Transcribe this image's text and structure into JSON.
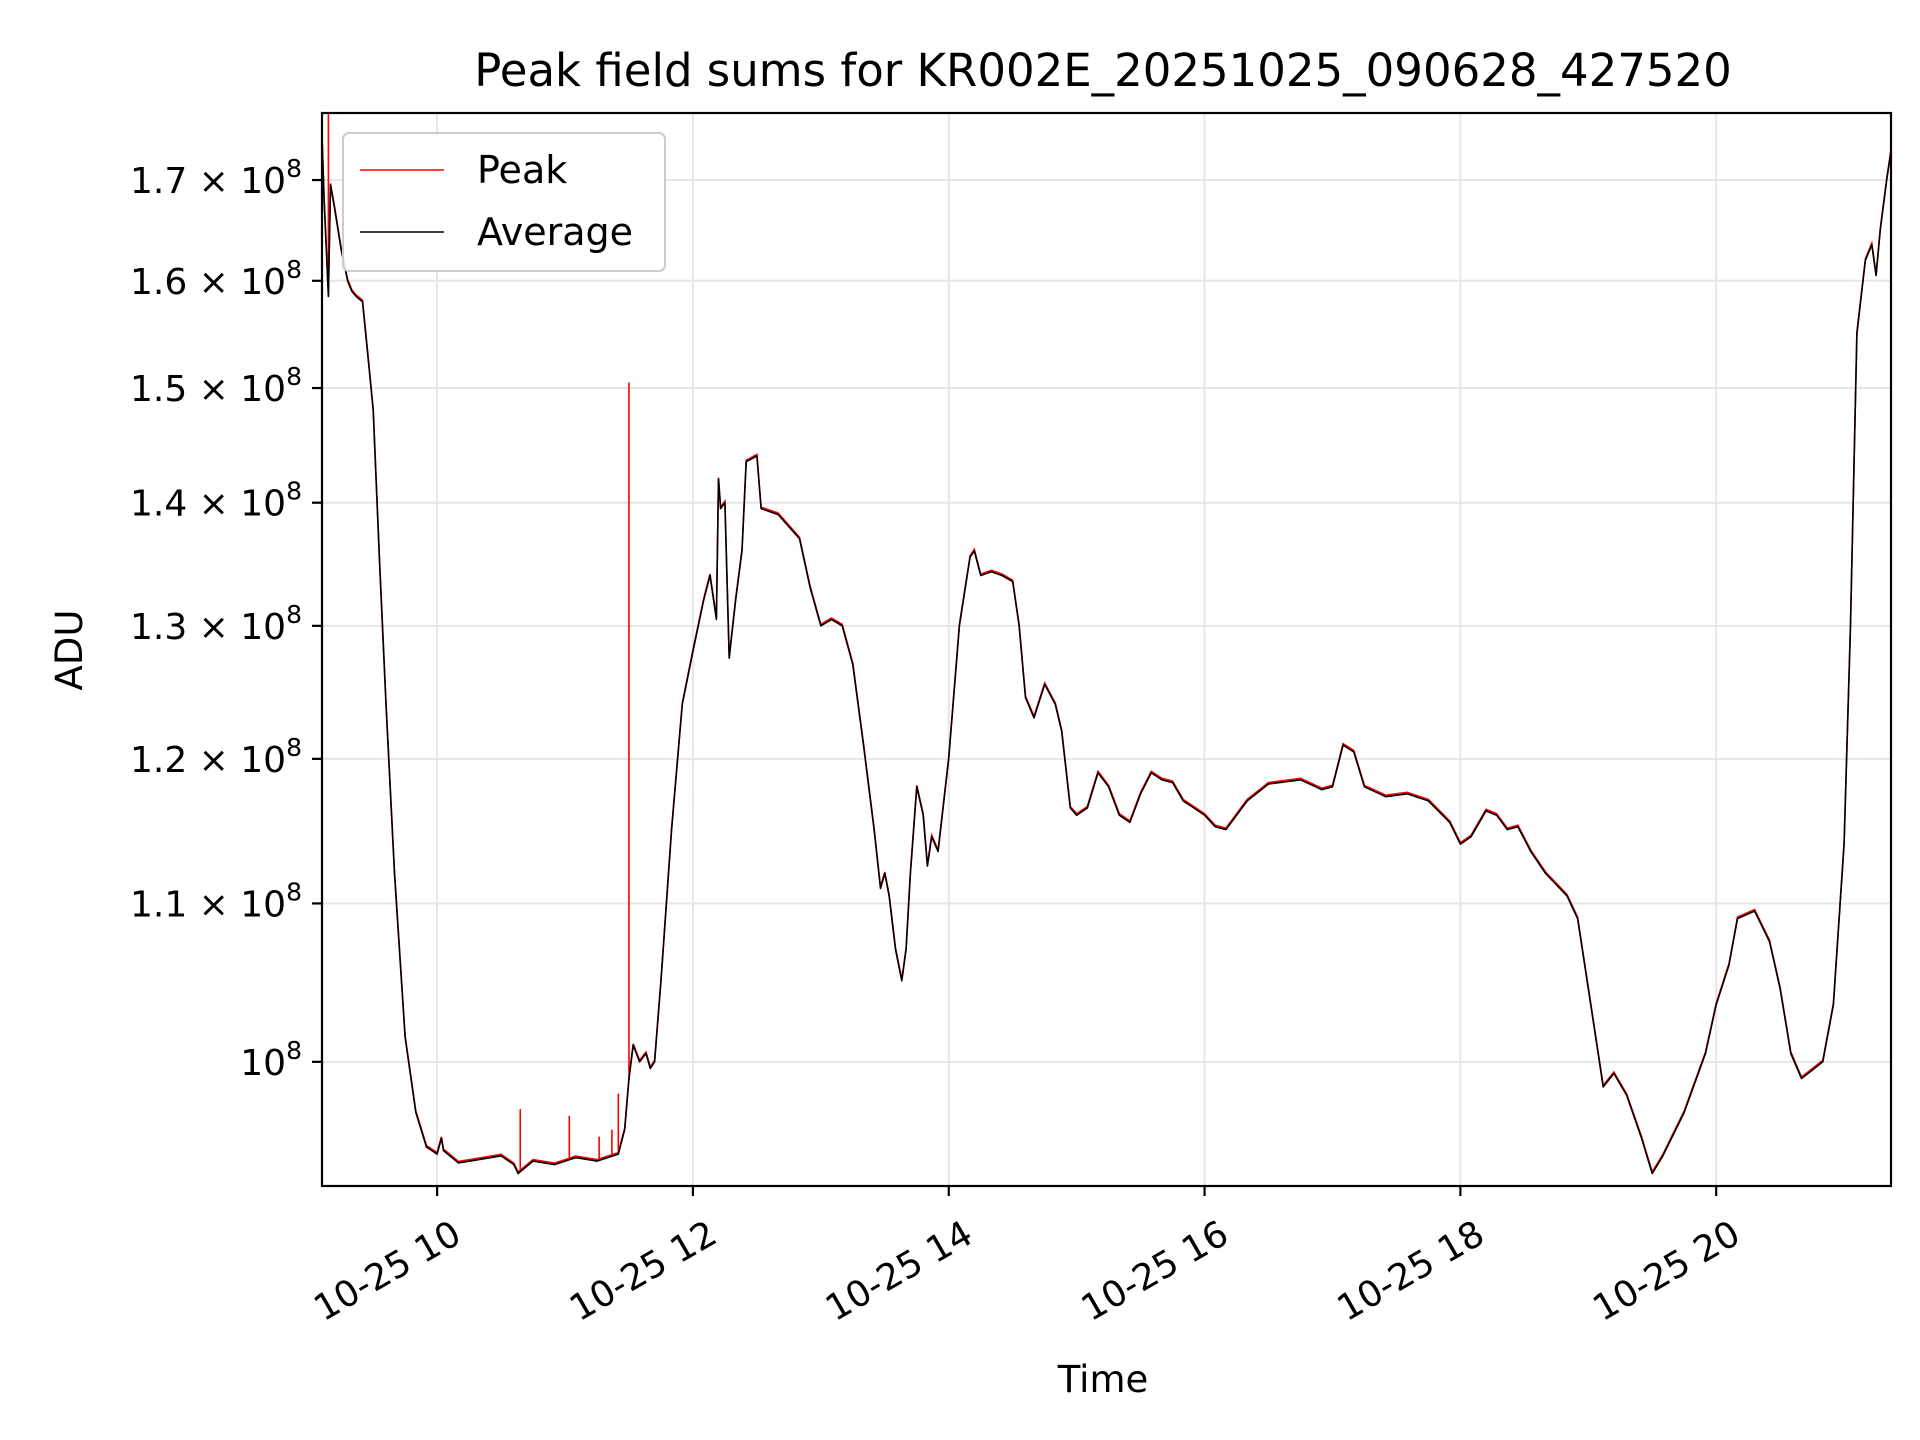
{
  "chart_data": {
    "type": "line",
    "title": "Peak field sums for KR002E_20251025_090628_427520",
    "xlabel": "Time",
    "ylabel": "ADU",
    "yscale": "log",
    "grid": true,
    "legend_position": "upper-left",
    "xlim": [
      "2025-10-25 09:06",
      "2025-10-25 21:22"
    ],
    "ylim": [
      92800000,
      177000000
    ],
    "x_ticks": [
      {
        "value": "2025-10-25 10:00",
        "label": "10-25 10"
      },
      {
        "value": "2025-10-25 12:00",
        "label": "10-25 12"
      },
      {
        "value": "2025-10-25 14:00",
        "label": "10-25 14"
      },
      {
        "value": "2025-10-25 16:00",
        "label": "10-25 16"
      },
      {
        "value": "2025-10-25 18:00",
        "label": "10-25 18"
      },
      {
        "value": "2025-10-25 20:00",
        "label": "10-25 20"
      }
    ],
    "y_ticks": [
      {
        "value": 100000000,
        "mant": "",
        "exp": "8"
      },
      {
        "value": 110000000,
        "mant": "1.1",
        "exp": "8"
      },
      {
        "value": 120000000,
        "mant": "1.2",
        "exp": "8"
      },
      {
        "value": 130000000,
        "mant": "1.3",
        "exp": "8"
      },
      {
        "value": 140000000,
        "mant": "1.4",
        "exp": "8"
      },
      {
        "value": 150000000,
        "mant": "1.5",
        "exp": "8"
      },
      {
        "value": 160000000,
        "mant": "1.6",
        "exp": "8"
      },
      {
        "value": 170000000,
        "mant": "1.7",
        "exp": "8"
      }
    ],
    "series": [
      {
        "name": "Average",
        "color": "#000000",
        "points": [
          [
            "2025-10-25 09:06",
            174.5
          ],
          [
            "2025-10-25 09:07",
            168.0
          ],
          [
            "2025-10-25 09:09",
            158.5
          ],
          [
            "2025-10-25 09:10",
            169.5
          ],
          [
            "2025-10-25 09:12",
            167.0
          ],
          [
            "2025-10-25 09:15",
            163.0
          ],
          [
            "2025-10-25 09:18",
            160.0
          ],
          [
            "2025-10-25 09:20",
            159.0
          ],
          [
            "2025-10-25 09:22",
            158.5
          ],
          [
            "2025-10-25 09:25",
            158.0
          ],
          [
            "2025-10-25 09:28",
            152.0
          ],
          [
            "2025-10-25 09:30",
            148.0
          ],
          [
            "2025-10-25 09:33",
            135.0
          ],
          [
            "2025-10-25 09:36",
            124.0
          ],
          [
            "2025-10-25 09:40",
            112.0
          ],
          [
            "2025-10-25 09:45",
            101.5
          ],
          [
            "2025-10-25 09:50",
            97.0
          ],
          [
            "2025-10-25 09:55",
            95.0
          ],
          [
            "2025-10-25 10:00",
            94.6
          ],
          [
            "2025-10-25 10:02",
            95.5
          ],
          [
            "2025-10-25 10:03",
            94.8
          ],
          [
            "2025-10-25 10:10",
            94.1
          ],
          [
            "2025-10-25 10:20",
            94.3
          ],
          [
            "2025-10-25 10:30",
            94.5
          ],
          [
            "2025-10-25 10:36",
            94.0
          ],
          [
            "2025-10-25 10:38",
            93.5
          ],
          [
            "2025-10-25 10:45",
            94.2
          ],
          [
            "2025-10-25 10:55",
            94.0
          ],
          [
            "2025-10-25 11:05",
            94.4
          ],
          [
            "2025-10-25 11:15",
            94.2
          ],
          [
            "2025-10-25 11:25",
            94.6
          ],
          [
            "2025-10-25 11:28",
            96.0
          ],
          [
            "2025-10-25 11:30",
            99.0
          ],
          [
            "2025-10-25 11:32",
            101.0
          ],
          [
            "2025-10-25 11:35",
            100.0
          ],
          [
            "2025-10-25 11:38",
            100.5
          ],
          [
            "2025-10-25 11:40",
            99.6
          ],
          [
            "2025-10-25 11:42",
            100.0
          ],
          [
            "2025-10-25 11:45",
            105.0
          ],
          [
            "2025-10-25 11:50",
            115.0
          ],
          [
            "2025-10-25 11:55",
            124.0
          ],
          [
            "2025-10-25 12:00",
            128.0
          ],
          [
            "2025-10-25 12:05",
            132.0
          ],
          [
            "2025-10-25 12:08",
            134.0
          ],
          [
            "2025-10-25 12:11",
            130.5
          ],
          [
            "2025-10-25 12:12",
            142.0
          ],
          [
            "2025-10-25 12:13",
            139.5
          ],
          [
            "2025-10-25 12:15",
            140.0
          ],
          [
            "2025-10-25 12:17",
            127.5
          ],
          [
            "2025-10-25 12:20",
            132.0
          ],
          [
            "2025-10-25 12:23",
            136.0
          ],
          [
            "2025-10-25 12:25",
            143.5
          ],
          [
            "2025-10-25 12:30",
            144.0
          ],
          [
            "2025-10-25 12:32",
            139.5
          ],
          [
            "2025-10-25 12:40",
            139.0
          ],
          [
            "2025-10-25 12:50",
            137.0
          ],
          [
            "2025-10-25 12:55",
            133.0
          ],
          [
            "2025-10-25 13:00",
            130.0
          ],
          [
            "2025-10-25 13:05",
            130.5
          ],
          [
            "2025-10-25 13:10",
            130.0
          ],
          [
            "2025-10-25 13:15",
            127.0
          ],
          [
            "2025-10-25 13:20",
            121.0
          ],
          [
            "2025-10-25 13:25",
            115.0
          ],
          [
            "2025-10-25 13:28",
            111.0
          ],
          [
            "2025-10-25 13:30",
            112.0
          ],
          [
            "2025-10-25 13:32",
            110.5
          ],
          [
            "2025-10-25 13:35",
            107.0
          ],
          [
            "2025-10-25 13:38",
            105.0
          ],
          [
            "2025-10-25 13:40",
            107.0
          ],
          [
            "2025-10-25 13:42",
            112.0
          ],
          [
            "2025-10-25 13:45",
            118.0
          ],
          [
            "2025-10-25 13:48",
            116.0
          ],
          [
            "2025-10-25 13:50",
            112.5
          ],
          [
            "2025-10-25 13:52",
            114.5
          ],
          [
            "2025-10-25 13:55",
            113.5
          ],
          [
            "2025-10-25 14:00",
            120.0
          ],
          [
            "2025-10-25 14:05",
            130.0
          ],
          [
            "2025-10-25 14:10",
            135.5
          ],
          [
            "2025-10-25 14:12",
            136.0
          ],
          [
            "2025-10-25 14:15",
            134.0
          ],
          [
            "2025-10-25 14:20",
            134.3
          ],
          [
            "2025-10-25 14:25",
            134.0
          ],
          [
            "2025-10-25 14:30",
            133.5
          ],
          [
            "2025-10-25 14:33",
            130.0
          ],
          [
            "2025-10-25 14:36",
            124.5
          ],
          [
            "2025-10-25 14:40",
            123.0
          ],
          [
            "2025-10-25 14:45",
            125.5
          ],
          [
            "2025-10-25 14:50",
            124.0
          ],
          [
            "2025-10-25 14:53",
            122.0
          ],
          [
            "2025-10-25 14:57",
            116.5
          ],
          [
            "2025-10-25 15:00",
            116.0
          ],
          [
            "2025-10-25 15:05",
            116.5
          ],
          [
            "2025-10-25 15:10",
            119.0
          ],
          [
            "2025-10-25 15:15",
            118.0
          ],
          [
            "2025-10-25 15:20",
            116.0
          ],
          [
            "2025-10-25 15:25",
            115.5
          ],
          [
            "2025-10-25 15:30",
            117.5
          ],
          [
            "2025-10-25 15:35",
            119.0
          ],
          [
            "2025-10-25 15:40",
            118.5
          ],
          [
            "2025-10-25 15:45",
            118.3
          ],
          [
            "2025-10-25 15:50",
            117.0
          ],
          [
            "2025-10-25 15:55",
            116.5
          ],
          [
            "2025-10-25 16:00",
            116.0
          ],
          [
            "2025-10-25 16:05",
            115.2
          ],
          [
            "2025-10-25 16:10",
            115.0
          ],
          [
            "2025-10-25 16:20",
            117.0
          ],
          [
            "2025-10-25 16:30",
            118.2
          ],
          [
            "2025-10-25 16:45",
            118.5
          ],
          [
            "2025-10-25 16:55",
            117.8
          ],
          [
            "2025-10-25 17:00",
            118.0
          ],
          [
            "2025-10-25 17:05",
            121.0
          ],
          [
            "2025-10-25 17:10",
            120.5
          ],
          [
            "2025-10-25 17:15",
            118.0
          ],
          [
            "2025-10-25 17:25",
            117.3
          ],
          [
            "2025-10-25 17:35",
            117.5
          ],
          [
            "2025-10-25 17:45",
            117.0
          ],
          [
            "2025-10-25 17:55",
            115.5
          ],
          [
            "2025-10-25 18:00",
            114.0
          ],
          [
            "2025-10-25 18:05",
            114.5
          ],
          [
            "2025-10-25 18:12",
            116.3
          ],
          [
            "2025-10-25 18:17",
            116.0
          ],
          [
            "2025-10-25 18:22",
            115.0
          ],
          [
            "2025-10-25 18:27",
            115.2
          ],
          [
            "2025-10-25 18:33",
            113.5
          ],
          [
            "2025-10-25 18:40",
            112.0
          ],
          [
            "2025-10-25 18:50",
            110.5
          ],
          [
            "2025-10-25 18:55",
            109.0
          ],
          [
            "2025-10-25 19:00",
            104.5
          ],
          [
            "2025-10-25 19:07",
            98.5
          ],
          [
            "2025-10-25 19:12",
            99.3
          ],
          [
            "2025-10-25 19:18",
            98.0
          ],
          [
            "2025-10-25 19:25",
            95.5
          ],
          [
            "2025-10-25 19:30",
            93.5
          ],
          [
            "2025-10-25 19:35",
            94.5
          ],
          [
            "2025-10-25 19:45",
            97.0
          ],
          [
            "2025-10-25 19:55",
            100.5
          ],
          [
            "2025-10-25 20:00",
            103.5
          ],
          [
            "2025-10-25 20:06",
            106.0
          ],
          [
            "2025-10-25 20:10",
            109.0
          ],
          [
            "2025-10-25 20:18",
            109.5
          ],
          [
            "2025-10-25 20:25",
            107.5
          ],
          [
            "2025-10-25 20:30",
            104.5
          ],
          [
            "2025-10-25 20:35",
            100.5
          ],
          [
            "2025-10-25 20:40",
            99.0
          ],
          [
            "2025-10-25 20:45",
            99.5
          ],
          [
            "2025-10-25 20:50",
            100.0
          ],
          [
            "2025-10-25 20:55",
            103.5
          ],
          [
            "2025-10-25 21:00",
            114.0
          ],
          [
            "2025-10-25 21:03",
            130.0
          ],
          [
            "2025-10-25 21:06",
            155.0
          ],
          [
            "2025-10-25 21:10",
            162.0
          ],
          [
            "2025-10-25 21:13",
            163.5
          ],
          [
            "2025-10-25 21:15",
            160.5
          ],
          [
            "2025-10-25 21:17",
            165.0
          ],
          [
            "2025-10-25 21:20",
            170.0
          ],
          [
            "2025-10-25 21:22",
            173.0
          ]
        ]
      },
      {
        "name": "Peak",
        "color": "#ff0000",
        "spikes": [
          [
            "2025-10-25 09:09",
            177.0
          ],
          [
            "2025-10-25 10:39",
            97.2
          ],
          [
            "2025-10-25 11:02",
            96.8
          ],
          [
            "2025-10-25 11:16",
            95.6
          ],
          [
            "2025-10-25 11:22",
            96.0
          ],
          [
            "2025-10-25 11:25",
            98.1
          ],
          [
            "2025-10-25 11:30",
            150.5
          ]
        ]
      }
    ]
  }
}
